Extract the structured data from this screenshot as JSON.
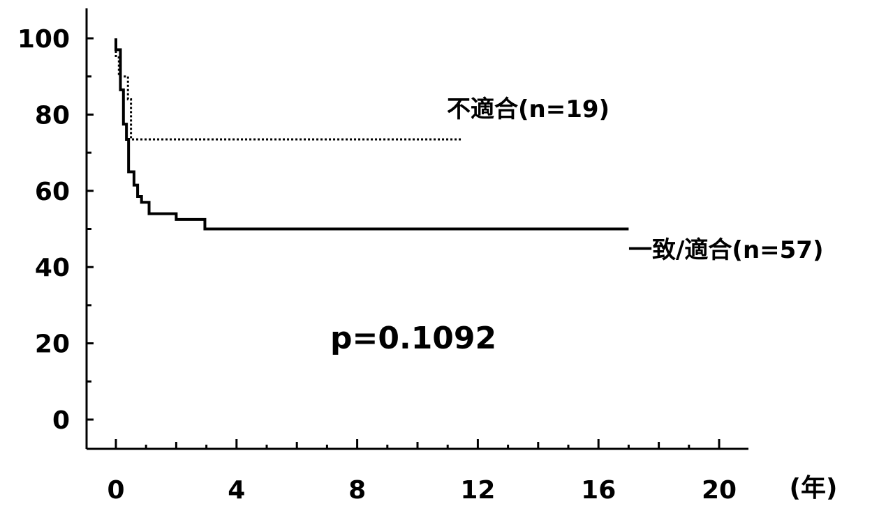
{
  "chart_data": {
    "type": "line",
    "title": "",
    "xlabel": "(年)",
    "ylabel": "",
    "xlim": [
      -1,
      21
    ],
    "ylim": [
      -8,
      108
    ],
    "x_ticks": [
      0,
      4,
      8,
      12,
      16,
      20
    ],
    "x_tick_labels": [
      "0",
      "4",
      "8",
      "12",
      "16",
      "20"
    ],
    "y_ticks": [
      0,
      20,
      40,
      60,
      80,
      100
    ],
    "y_tick_labels": [
      "0",
      "20",
      "40",
      "60",
      "80",
      "100"
    ],
    "grid": false,
    "p_value_label": "p=0.1092",
    "series": [
      {
        "name": "不適合(n=19)",
        "line_style": "dotted",
        "color": "#000000",
        "points": [
          [
            0,
            100
          ],
          [
            0,
            95
          ],
          [
            0.1,
            95
          ],
          [
            0.1,
            90
          ],
          [
            0.4,
            90
          ],
          [
            0.4,
            84
          ],
          [
            0.5,
            84
          ],
          [
            0.5,
            73.5
          ],
          [
            11.5,
            73.5
          ]
        ]
      },
      {
        "name": "一致/適合(n=57)",
        "line_style": "solid",
        "color": "#000000",
        "points": [
          [
            0,
            100
          ],
          [
            0,
            97
          ],
          [
            0.15,
            97
          ],
          [
            0.15,
            86.5
          ],
          [
            0.25,
            86.5
          ],
          [
            0.25,
            77.5
          ],
          [
            0.35,
            77.5
          ],
          [
            0.35,
            73.5
          ],
          [
            0.42,
            73.5
          ],
          [
            0.42,
            65
          ],
          [
            0.6,
            65
          ],
          [
            0.6,
            61.5
          ],
          [
            0.72,
            61.5
          ],
          [
            0.72,
            58.5
          ],
          [
            0.85,
            58.5
          ],
          [
            0.85,
            57
          ],
          [
            1.1,
            57
          ],
          [
            1.1,
            54
          ],
          [
            2.0,
            54
          ],
          [
            2.0,
            52.5
          ],
          [
            2.95,
            52.5
          ],
          [
            2.95,
            50
          ],
          [
            17,
            50
          ]
        ]
      }
    ]
  }
}
